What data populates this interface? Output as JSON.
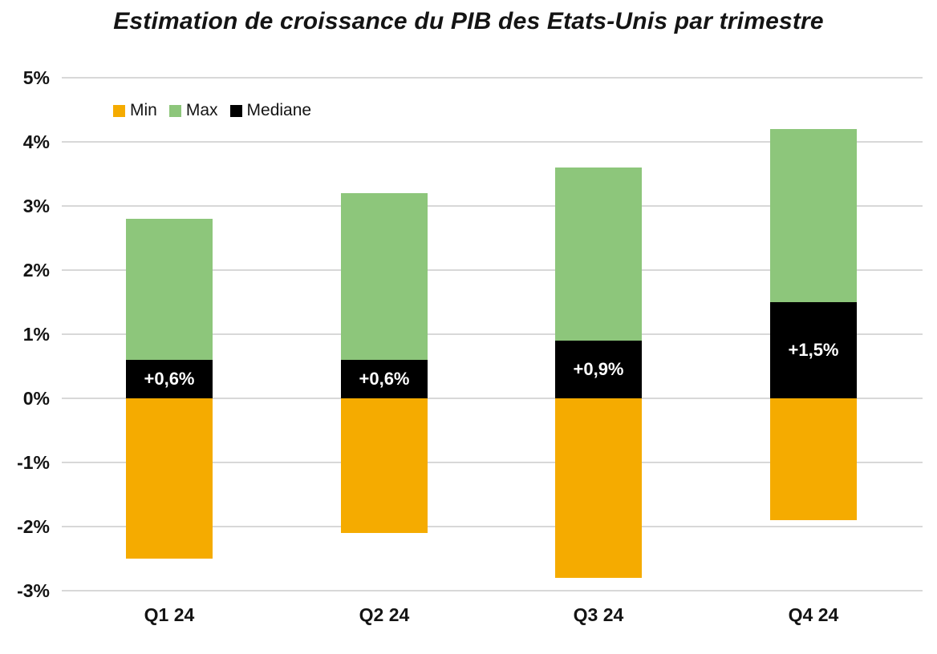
{
  "title": "Estimation de croissance du PIB des Etats-Unis par trimestre",
  "legend": [
    {
      "label": "Min",
      "color": "#F5AB00"
    },
    {
      "label": "Max",
      "color": "#8DC67B"
    },
    {
      "label": "Mediane",
      "color": "#000000"
    }
  ],
  "chart_data": {
    "type": "bar",
    "subtype": "stacked-range-bars",
    "title": "Estimation de croissance du PIB des Etats-Unis par trimestre",
    "categories": [
      "Q1 24",
      "Q2 24",
      "Q3 24",
      "Q4 24"
    ],
    "series": [
      {
        "name": "Min",
        "color": "#F5AB00",
        "values": [
          -2.5,
          -2.1,
          -2.8,
          -1.9
        ]
      },
      {
        "name": "Max",
        "color": "#8DC67B",
        "values": [
          2.8,
          3.2,
          3.6,
          4.2
        ]
      },
      {
        "name": "Mediane",
        "color": "#000000",
        "values": [
          0.6,
          0.6,
          0.9,
          1.5
        ]
      }
    ],
    "median_labels": [
      "+0,6%",
      "+0,6%",
      "+0,9%",
      "+1,5%"
    ],
    "xlabel": "",
    "ylabel": "",
    "ylim": [
      -3,
      5
    ],
    "ytick_labels": [
      "5%",
      "4%",
      "3%",
      "2%",
      "1%",
      "0%",
      "-1%",
      "-2%",
      "-3%"
    ],
    "ytick_values": [
      5,
      4,
      3,
      2,
      1,
      0,
      -1,
      -2,
      -3
    ],
    "grid": true,
    "gridline_color": "#d8d8d8",
    "background_color": "#ffffff",
    "legend_position": "top-left"
  }
}
